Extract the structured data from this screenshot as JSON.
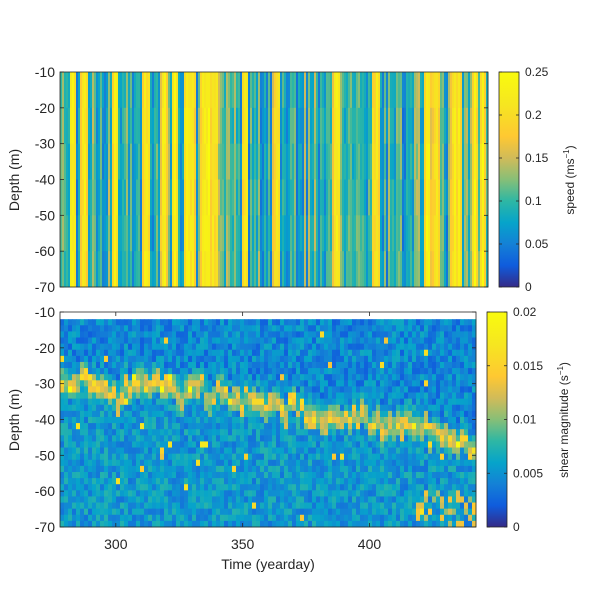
{
  "chart_data": [
    {
      "type": "heatmap",
      "panel": "top",
      "ylabel": "Depth (m)",
      "yticks": [
        -10,
        -20,
        -30,
        -40,
        -50,
        -60,
        -70
      ],
      "ylim": [
        -70,
        -10
      ],
      "xlim": [
        278,
        442
      ],
      "colorbar": {
        "label_main": "speed (ms",
        "label_sup": "−1",
        "label_tail": ")",
        "ticks": [
          0,
          0.05,
          0.1,
          0.15,
          0.2,
          0.25
        ],
        "tick_labels": [
          "0",
          "0.05",
          "0.1",
          "0.15",
          "0.2",
          "0.25"
        ],
        "range": [
          0,
          0.25
        ]
      },
      "colormap": "parula",
      "bright_bands_yearday": [
        283,
        287,
        299,
        311,
        318,
        322,
        327,
        329,
        333,
        335,
        337,
        349,
        361,
        384,
        399,
        419,
        422,
        429,
        431,
        437,
        440
      ]
    },
    {
      "type": "heatmap",
      "panel": "bottom",
      "xlabel": "Time (yearday)",
      "ylabel": "Depth (m)",
      "xticks": [
        300,
        350,
        400
      ],
      "xtick_labels": [
        "300",
        "350",
        "400"
      ],
      "yticks": [
        -10,
        -20,
        -30,
        -40,
        -50,
        -60,
        -70
      ],
      "ylim": [
        -70,
        -10
      ],
      "xlim": [
        278,
        442
      ],
      "colorbar": {
        "label_main": "shear magnitude (s",
        "label_sup": "−1",
        "label_tail": ")",
        "ticks": [
          0,
          0.005,
          0.01,
          0.015,
          0.02
        ],
        "tick_labels": [
          "0",
          "0.005",
          "0.01",
          "0.015",
          "0.02"
        ],
        "range": [
          0,
          0.02
        ]
      },
      "colormap": "parula",
      "high_shear_layer": [
        {
          "yearday": 280,
          "depth": -28
        },
        {
          "yearday": 290,
          "depth": -30
        },
        {
          "yearday": 300,
          "depth": -34
        },
        {
          "yearday": 315,
          "depth": -30
        },
        {
          "yearday": 325,
          "depth": -33
        },
        {
          "yearday": 340,
          "depth": -32
        },
        {
          "yearday": 355,
          "depth": -36
        },
        {
          "yearday": 370,
          "depth": -37
        },
        {
          "yearday": 385,
          "depth": -40
        },
        {
          "yearday": 400,
          "depth": -40
        },
        {
          "yearday": 415,
          "depth": -42
        },
        {
          "yearday": 430,
          "depth": -45
        },
        {
          "yearday": 440,
          "depth": -47
        }
      ]
    }
  ]
}
